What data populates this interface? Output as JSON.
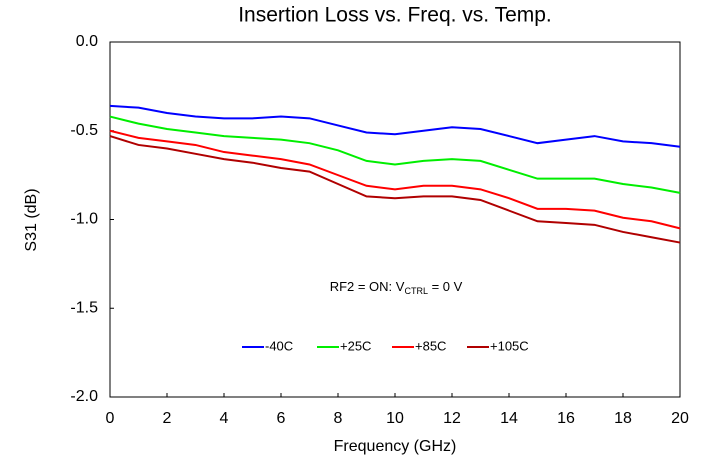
{
  "chart_data": {
    "type": "line",
    "title": "Insertion Loss vs. Freq. vs. Temp.",
    "xlabel": "Frequency (GHz)",
    "ylabel": "S31 (dB)",
    "annotation": {
      "text": "RF2 = ON: V",
      "subscript": "CTRL",
      "tail": " = 0 V"
    },
    "x": [
      0,
      1,
      2,
      3,
      4,
      5,
      6,
      7,
      8,
      9,
      10,
      11,
      12,
      13,
      14,
      15,
      16,
      17,
      18,
      19,
      20
    ],
    "series": [
      {
        "name": "-40C",
        "color": "#0000ff",
        "values": [
          -0.36,
          -0.37,
          -0.4,
          -0.42,
          -0.43,
          -0.43,
          -0.42,
          -0.43,
          -0.47,
          -0.51,
          -0.52,
          -0.5,
          -0.48,
          -0.49,
          -0.53,
          -0.57,
          -0.55,
          -0.53,
          -0.56,
          -0.57,
          -0.59
        ]
      },
      {
        "name": "+25C",
        "color": "#00ee00",
        "values": [
          -0.42,
          -0.46,
          -0.49,
          -0.51,
          -0.53,
          -0.54,
          -0.55,
          -0.57,
          -0.61,
          -0.67,
          -0.69,
          -0.67,
          -0.66,
          -0.67,
          -0.72,
          -0.77,
          -0.77,
          -0.77,
          -0.8,
          -0.82,
          -0.85
        ]
      },
      {
        "name": "+85C",
        "color": "#ff0000",
        "values": [
          -0.5,
          -0.54,
          -0.56,
          -0.58,
          -0.62,
          -0.64,
          -0.66,
          -0.69,
          -0.75,
          -0.81,
          -0.83,
          -0.81,
          -0.81,
          -0.83,
          -0.88,
          -0.94,
          -0.94,
          -0.95,
          -0.99,
          -1.01,
          -1.05
        ]
      },
      {
        "name": "+105C",
        "color": "#b00000",
        "values": [
          -0.53,
          -0.58,
          -0.6,
          -0.63,
          -0.66,
          -0.68,
          -0.71,
          -0.73,
          -0.8,
          -0.87,
          -0.88,
          -0.87,
          -0.87,
          -0.89,
          -0.95,
          -1.01,
          -1.02,
          -1.03,
          -1.07,
          -1.1,
          -1.13
        ]
      }
    ],
    "xlim": [
      0,
      20
    ],
    "xticks": [
      0,
      2,
      4,
      6,
      8,
      10,
      12,
      14,
      16,
      18,
      20
    ],
    "ylim": [
      -2,
      0
    ],
    "yticks": [
      {
        "value": 0,
        "label": "0.0"
      },
      -0.5,
      {
        "value": -1,
        "label": "-1.0"
      },
      -1.5,
      {
        "value": -2,
        "label": "-2.0"
      }
    ],
    "grid": false,
    "legend": "bottom"
  }
}
